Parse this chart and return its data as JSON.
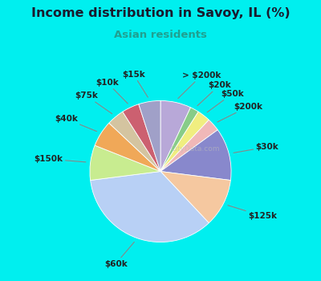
{
  "title": "Income distribution in Savoy, IL (%)",
  "subtitle": "Asian residents",
  "title_color": "#1a1a2e",
  "subtitle_color": "#20a090",
  "bg_color": "#00EFEF",
  "chart_bg_top": "#e0f4f0",
  "chart_bg_bot": "#d0ecd8",
  "slices": [
    {
      "label": "> $200k",
      "value": 7,
      "color": "#b8a8d8"
    },
    {
      "label": "$20k",
      "value": 2,
      "color": "#88cc88"
    },
    {
      "label": "$50k",
      "value": 3,
      "color": "#f0ee80"
    },
    {
      "label": "$200k",
      "value": 3,
      "color": "#f0b8b8"
    },
    {
      "label": "$30k",
      "value": 12,
      "color": "#8888cc"
    },
    {
      "label": "$125k",
      "value": 11,
      "color": "#f5c8a0"
    },
    {
      "label": "$60k",
      "value": 35,
      "color": "#b8d0f5"
    },
    {
      "label": "$150k",
      "value": 8,
      "color": "#c8ec90"
    },
    {
      "label": "$40k",
      "value": 6,
      "color": "#f0a858"
    },
    {
      "label": "$75k",
      "value": 4,
      "color": "#d4c4a0"
    },
    {
      "label": "$10k",
      "value": 4,
      "color": "#cc6070"
    },
    {
      "label": "$15k",
      "value": 5,
      "color": "#a0a0c8"
    }
  ],
  "label_fontsize": 7.5,
  "label_color": "#222222"
}
